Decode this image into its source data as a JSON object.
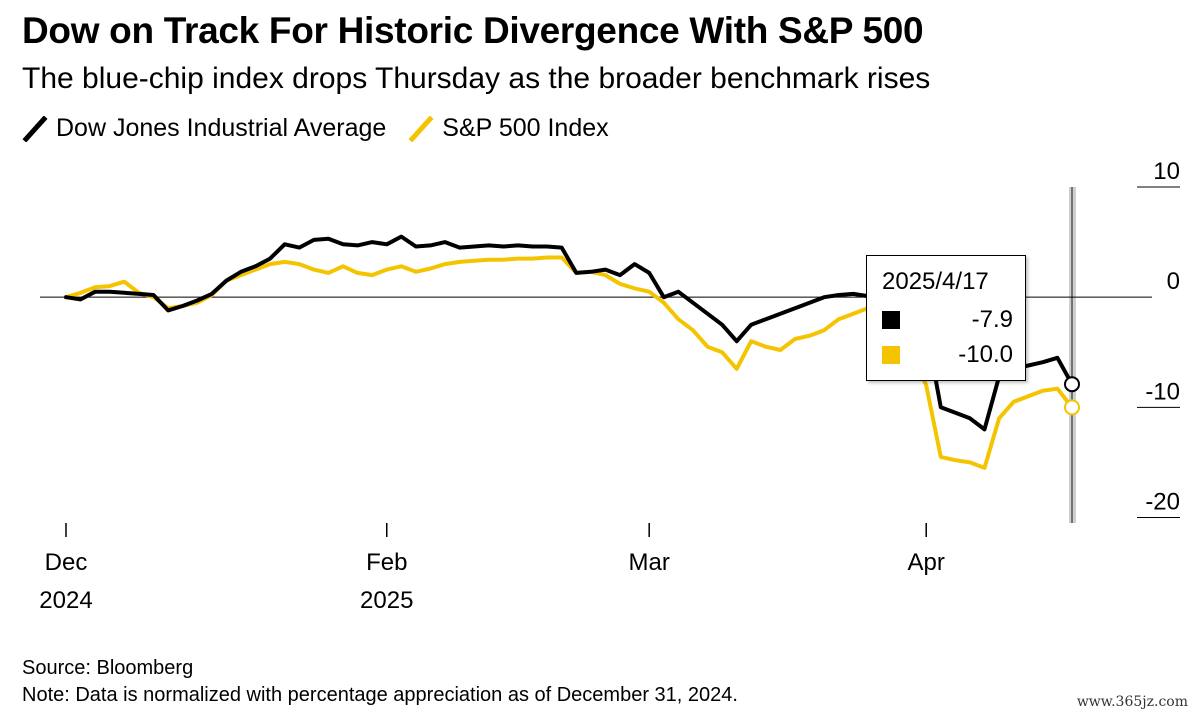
{
  "header": {
    "title": "Dow on Track For Historic Divergence With S&P 500",
    "subtitle": "The blue-chip index drops Thursday as the broader benchmark rises"
  },
  "legend": [
    {
      "label": "Dow Jones Industrial Average",
      "color": "#000000"
    },
    {
      "label": "S&P 500 Index",
      "color": "#F5C400"
    }
  ],
  "tooltip": {
    "date": "2025/4/17",
    "rows": [
      {
        "value": "-7.9",
        "color": "#000000"
      },
      {
        "value": "-10.0",
        "color": "#F5C400"
      }
    ]
  },
  "footer": {
    "source": "Source: Bloomberg",
    "note": "Note: Data is normalized with percentage appreciation as of December 31, 2024."
  },
  "watermark": "www.365jz.com",
  "chart_data": {
    "type": "line",
    "title": "Dow on Track For Historic Divergence With S&P 500",
    "subtitle": "The blue-chip index drops Thursday as the broader benchmark rises",
    "xlabel": "",
    "ylabel": "",
    "ylim": [
      -20.5,
      10
    ],
    "y_ticks": [
      10,
      0,
      -10,
      -20
    ],
    "zero_line": true,
    "x_ticks": [
      {
        "line1": "Dec",
        "line2": "2024",
        "index": 0
      },
      {
        "line1": "Feb",
        "line2": "2025",
        "index": 22
      },
      {
        "line1": "Mar",
        "line2": "",
        "index": 40
      },
      {
        "line1": "Apr",
        "line2": "",
        "index": 59
      }
    ],
    "highlight_index": 69,
    "x_count": 70,
    "series": [
      {
        "name": "Dow Jones Industrial Average",
        "color": "#000000",
        "values": [
          0,
          -0.2,
          0.5,
          0.5,
          0.4,
          0.3,
          0.2,
          -1.2,
          -0.8,
          -0.3,
          0.3,
          1.5,
          2.3,
          2.8,
          3.5,
          4.8,
          4.5,
          5.2,
          5.3,
          4.8,
          4.7,
          5.0,
          4.8,
          5.5,
          4.6,
          4.7,
          5.0,
          4.5,
          4.6,
          4.7,
          4.6,
          4.7,
          4.6,
          4.6,
          4.5,
          2.2,
          2.3,
          2.5,
          2.0,
          3.0,
          2.2,
          0.0,
          0.5,
          -0.5,
          -1.5,
          -2.5,
          -4.0,
          -2.5,
          -2.0,
          -1.5,
          -1.0,
          -0.5,
          0.0,
          0.2,
          0.3,
          0.1,
          -0.5,
          -1.0,
          -2.0,
          -2.8,
          -10.0,
          -10.5,
          -11.0,
          -12.0,
          -7.2,
          -6.5,
          -6.2,
          -5.9,
          -5.5,
          -7.9
        ]
      },
      {
        "name": "S&P 500 Index",
        "color": "#F5C400",
        "values": [
          0,
          0.4,
          0.9,
          1.0,
          1.4,
          0.4,
          0.0,
          -1.0,
          -0.8,
          -0.5,
          0.2,
          1.5,
          2.0,
          2.5,
          3.0,
          3.2,
          3.0,
          2.5,
          2.2,
          2.8,
          2.2,
          2.0,
          2.5,
          2.8,
          2.3,
          2.6,
          3.0,
          3.2,
          3.3,
          3.4,
          3.4,
          3.5,
          3.5,
          3.6,
          3.6,
          2.2,
          2.3,
          2.0,
          1.2,
          0.8,
          0.5,
          -0.5,
          -2.0,
          -3.0,
          -4.5,
          -5.0,
          -6.5,
          -4.0,
          -4.5,
          -4.8,
          -3.8,
          -3.5,
          -3.0,
          -2.0,
          -1.5,
          -1.0,
          -2.5,
          -3.5,
          -5.0,
          -8.0,
          -14.5,
          -14.8,
          -15.0,
          -15.5,
          -11.0,
          -9.5,
          -9.0,
          -8.5,
          -8.3,
          -10.0
        ]
      }
    ]
  }
}
